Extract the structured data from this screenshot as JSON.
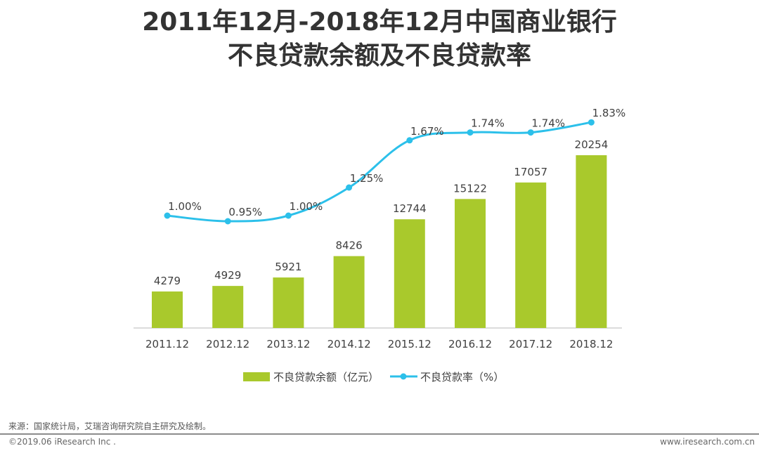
{
  "chart_data": {
    "type": "bar+line",
    "title_line1": "2011年12月-2018年12月中国商业银行",
    "title_line2": "不良贷款余额及不良贷款率",
    "categories": [
      "2011.12",
      "2012.12",
      "2013.12",
      "2014.12",
      "2015.12",
      "2016.12",
      "2017.12",
      "2018.12"
    ],
    "series": [
      {
        "name": "不良贷款余额（亿元）",
        "type": "bar",
        "color": "#a9c92c",
        "values": [
          4279,
          4929,
          5921,
          8426,
          12744,
          15122,
          17057,
          20254
        ],
        "labels": [
          "4279",
          "4929",
          "5921",
          "8426",
          "12744",
          "15122",
          "17057",
          "20254"
        ]
      },
      {
        "name": "不良贷款率（%）",
        "type": "line",
        "color": "#2cc0ea",
        "values": [
          1.0,
          0.95,
          1.0,
          1.25,
          1.67,
          1.74,
          1.74,
          1.83
        ],
        "labels": [
          "1.00%",
          "0.95%",
          "1.00%",
          "1.25%",
          "1.67%",
          "1.74%",
          "1.74%",
          "1.83%"
        ]
      }
    ],
    "legend_position": "bottom",
    "grid": false
  },
  "footer": {
    "source": "来源：国家统计局，艾瑞咨询研究院自主研究及绘制。",
    "copyright": "©2019.06 iResearch Inc .",
    "url": "www.iresearch.com.cn"
  }
}
